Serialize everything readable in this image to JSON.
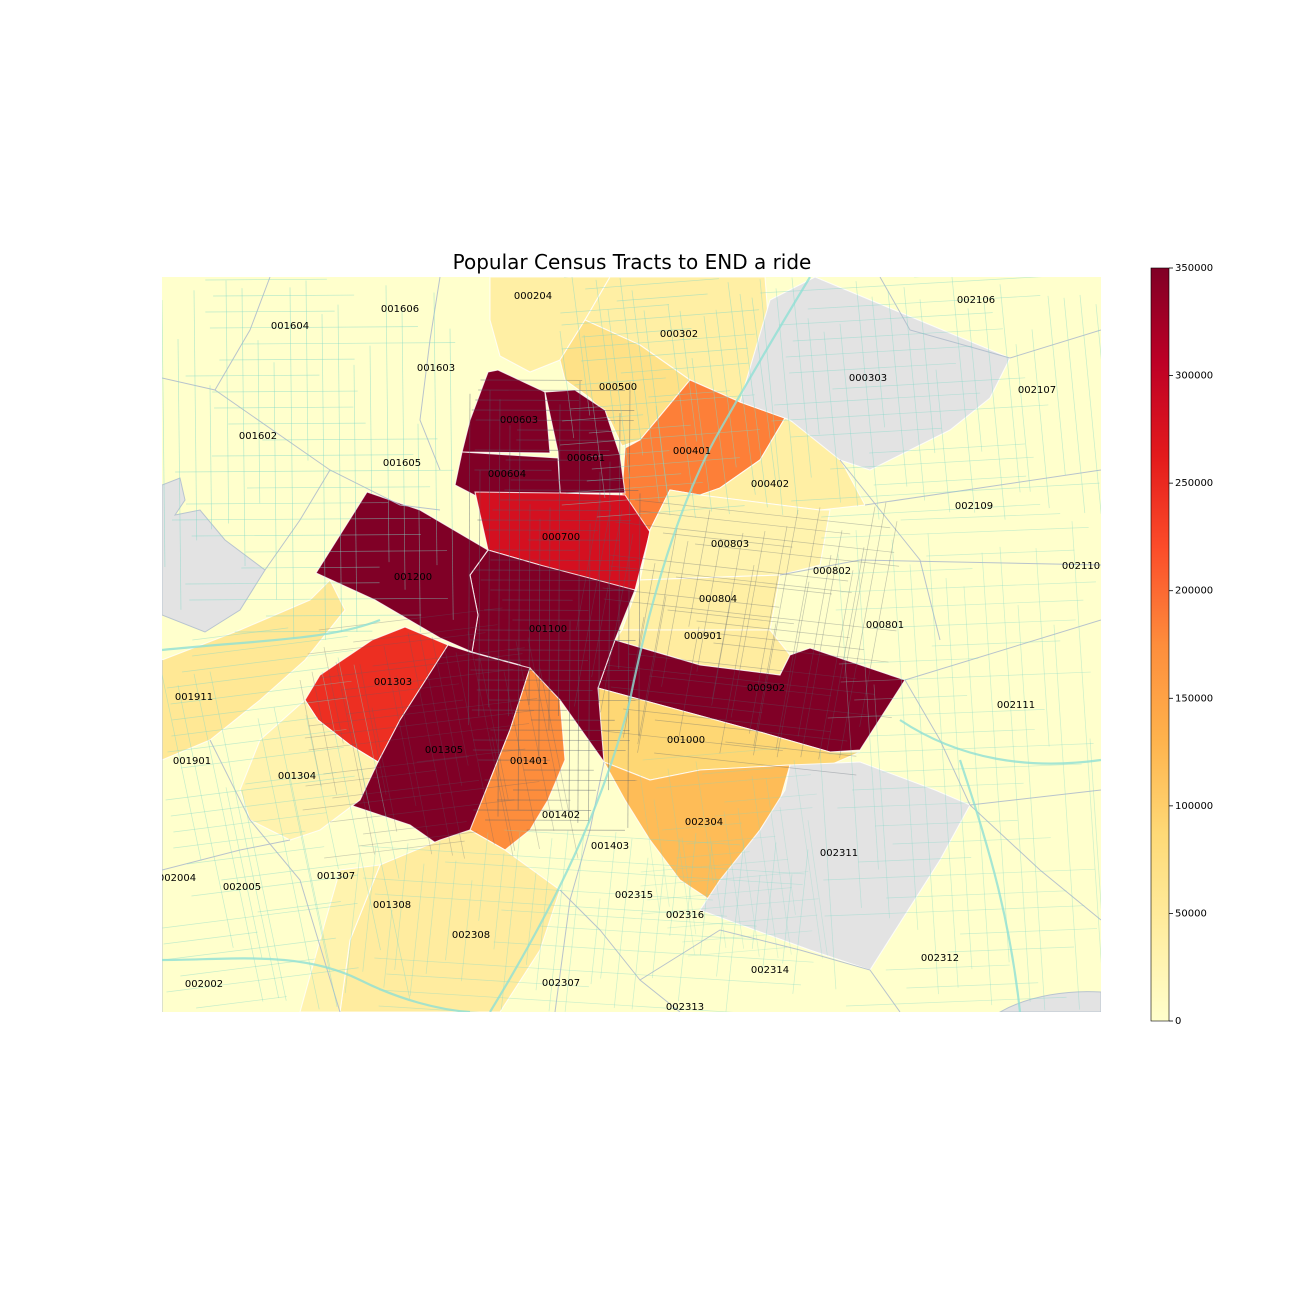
{
  "title": "Popular Census Tracts to END a ride",
  "colorbar": {
    "min": 0,
    "max": 350000,
    "ticks": [
      "350000",
      "300000",
      "250000",
      "200000",
      "150000",
      "100000",
      "50000",
      "0"
    ],
    "palette": [
      "#ffffcc",
      "#ffeda0",
      "#fed976",
      "#feb24c",
      "#fd8d3c",
      "#fc4e2a",
      "#e31a1c",
      "#bd0026",
      "#800026"
    ]
  },
  "no_data_color": "#e3e3e3",
  "tracts": [
    {
      "id": "000204",
      "value": 40000
    },
    {
      "id": "000302",
      "value": 40000
    },
    {
      "id": "000500",
      "value": 70000
    },
    {
      "id": "000401",
      "value": 185000
    },
    {
      "id": "000402",
      "value": 40000
    },
    {
      "id": "000603",
      "value": 350000
    },
    {
      "id": "000601",
      "value": 350000
    },
    {
      "id": "000604",
      "value": 350000
    },
    {
      "id": "000700",
      "value": 280000
    },
    {
      "id": "000803",
      "value": 30000
    },
    {
      "id": "000804",
      "value": 40000
    },
    {
      "id": "000901",
      "value": 45000
    },
    {
      "id": "000902",
      "value": 350000
    },
    {
      "id": "001000",
      "value": 90000
    },
    {
      "id": "001100",
      "value": 350000
    },
    {
      "id": "001200",
      "value": 350000
    },
    {
      "id": "001303",
      "value": 245000
    },
    {
      "id": "001305",
      "value": 350000
    },
    {
      "id": "001401",
      "value": 175000
    },
    {
      "id": "002304",
      "value": 120000
    },
    {
      "id": "002308",
      "value": 45000
    },
    {
      "id": "001304",
      "value": 30000
    },
    {
      "id": "001911",
      "value": 55000
    },
    {
      "id": "000303",
      "value": null
    },
    {
      "id": "002311",
      "value": null
    },
    {
      "id": "001604",
      "value": 10000
    },
    {
      "id": "001606",
      "value": 10000
    },
    {
      "id": "001603",
      "value": 10000
    },
    {
      "id": "001602",
      "value": 15000
    },
    {
      "id": "001605",
      "value": 15000
    },
    {
      "id": "002106",
      "value": 5000
    },
    {
      "id": "002107",
      "value": 5000
    },
    {
      "id": "002109",
      "value": 5000
    },
    {
      "id": "002110",
      "value": 5000
    },
    {
      "id": "000802",
      "value": 10000
    },
    {
      "id": "000801",
      "value": 10000
    },
    {
      "id": "002111",
      "value": 5000
    },
    {
      "id": "001901",
      "value": 20000
    },
    {
      "id": "001402",
      "value": 15000
    },
    {
      "id": "001403",
      "value": 10000
    },
    {
      "id": "002004",
      "value": 10000
    },
    {
      "id": "002005",
      "value": 10000
    },
    {
      "id": "001307",
      "value": 15000
    },
    {
      "id": "001308",
      "value": 30000
    },
    {
      "id": "002315",
      "value": 10000
    },
    {
      "id": "002316",
      "value": 15000
    },
    {
      "id": "002314",
      "value": 20000
    },
    {
      "id": "002312",
      "value": 5000
    },
    {
      "id": "002307",
      "value": 10000
    },
    {
      "id": "002002",
      "value": 10000
    },
    {
      "id": "002313",
      "value": 10000
    }
  ]
}
